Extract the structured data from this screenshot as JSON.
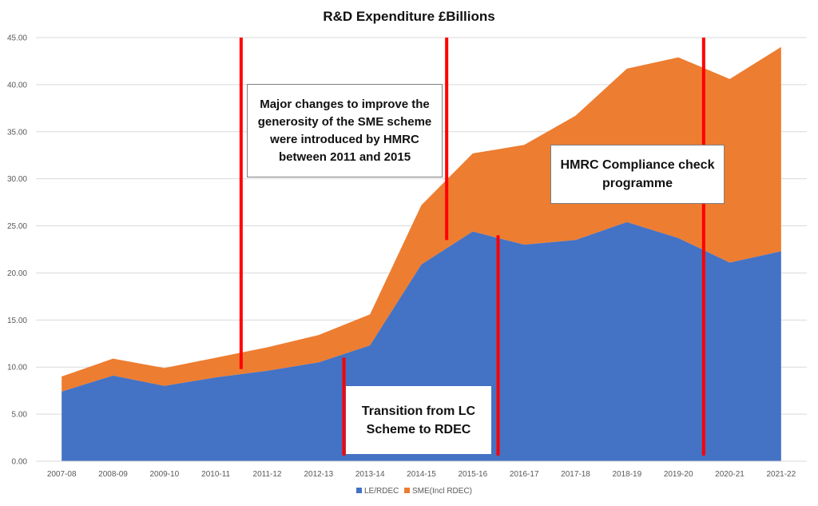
{
  "chart_data": {
    "type": "area",
    "stacked": true,
    "title": "R&D Expenditure £Billions",
    "categories": [
      "2007-08",
      "2008-09",
      "2009-10",
      "2010-11",
      "2011-12",
      "2012-13",
      "2013-14",
      "2014-15",
      "2015-16",
      "2016-17",
      "2017-18",
      "2018-19",
      "2019-20",
      "2020-21",
      "2021-22"
    ],
    "series": [
      {
        "name": "LE/RDEC",
        "color": "#4472c4",
        "values": [
          7.4,
          9.1,
          8.0,
          8.9,
          9.6,
          10.5,
          12.3,
          20.9,
          24.4,
          23.0,
          23.5,
          25.4,
          23.7,
          21.1,
          22.3
        ]
      },
      {
        "name": "SME(Incl RDEC)",
        "color": "#ed7d31",
        "values": [
          1.6,
          1.8,
          1.9,
          2.1,
          2.5,
          2.9,
          3.3,
          6.3,
          8.3,
          10.6,
          13.2,
          16.3,
          19.2,
          19.5,
          21.7
        ]
      }
    ],
    "ylim": [
      0,
      45
    ],
    "ytick_step": 5,
    "ytick_labels": [
      "0.00",
      "5.00",
      "10.00",
      "15.00",
      "20.00",
      "25.00",
      "30.00",
      "35.00",
      "40.00",
      "45.00"
    ],
    "grid": true,
    "legend": "bottom-center",
    "marker_lines": [
      {
        "category": "2011-12",
        "y_from": 9.8,
        "y_to": 45.0
      },
      {
        "category": "2013-14",
        "y_from": 0.6,
        "y_to": 11.0
      },
      {
        "category": "2015-16",
        "y_from": 23.5,
        "y_to": 45.0
      },
      {
        "category": "2016-17",
        "y_from": 0.6,
        "y_to": 24.0
      },
      {
        "category": "2020-21",
        "y_from": 0.6,
        "y_to": 45.0
      }
    ],
    "marker_color": "#ff0000",
    "annotations": [
      {
        "id": "sme-changes",
        "lines": [
          "Major changes to improve the",
          "generosity of the SME scheme",
          "were introduced by HMRC",
          "between 2011 and 2015"
        ]
      },
      {
        "id": "compliance",
        "lines": [
          "HMRC Compliance check",
          "programme"
        ]
      },
      {
        "id": "transition",
        "lines": [
          "Transition from LC",
          "Scheme to RDEC"
        ]
      }
    ]
  }
}
